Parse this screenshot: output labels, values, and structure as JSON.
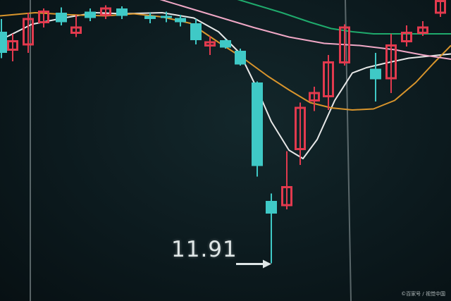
{
  "chart_data": {
    "type": "candlestick",
    "title": "",
    "low_annotation": "11.91",
    "annotation_arrow": "→",
    "watermark": "©百家号 / 视觉中国",
    "ylim": [
      11.5,
      14.5
    ],
    "colors": {
      "up": "#e23a4e",
      "down": "#3fc9c6",
      "ma_white": "#e8e8e8",
      "ma_orange": "#d9952c",
      "ma_green": "#1faa6c",
      "ma_pink": "#f0a8c6",
      "vline": "#9aa6a8"
    },
    "candles": [
      {
        "x": 2,
        "open": 14.1,
        "close": 13.9,
        "high": 14.22,
        "low": 13.85
      },
      {
        "x": 18,
        "open": 13.92,
        "close": 14.02,
        "high": 14.08,
        "low": 13.82
      },
      {
        "x": 40,
        "open": 13.97,
        "close": 14.23,
        "high": 14.28,
        "low": 13.9
      },
      {
        "x": 62,
        "open": 14.18,
        "close": 14.3,
        "high": 14.32,
        "low": 14.14
      },
      {
        "x": 87,
        "open": 14.28,
        "close": 14.19,
        "high": 14.33,
        "low": 14.16
      },
      {
        "x": 108,
        "open": 14.08,
        "close": 14.15,
        "high": 14.26,
        "low": 14.05
      },
      {
        "x": 128,
        "open": 14.29,
        "close": 14.23,
        "high": 14.32,
        "low": 14.2
      },
      {
        "x": 150,
        "open": 14.25,
        "close": 14.33,
        "high": 14.35,
        "low": 14.22
      },
      {
        "x": 173,
        "open": 14.32,
        "close": 14.25,
        "high": 14.34,
        "low": 14.22
      },
      {
        "x": 213,
        "open": 14.25,
        "close": 14.22,
        "high": 14.28,
        "low": 14.18
      },
      {
        "x": 236,
        "open": 14.25,
        "close": 14.24,
        "high": 14.29,
        "low": 14.19
      },
      {
        "x": 256,
        "open": 14.23,
        "close": 14.19,
        "high": 14.26,
        "low": 14.15
      },
      {
        "x": 278,
        "open": 14.18,
        "close": 14.02,
        "high": 14.22,
        "low": 13.98
      },
      {
        "x": 298,
        "open": 13.96,
        "close": 14.01,
        "high": 14.06,
        "low": 13.88
      },
      {
        "x": 320,
        "open": 14.02,
        "close": 13.95,
        "high": 14.03,
        "low": 13.94
      },
      {
        "x": 341,
        "open": 13.92,
        "close": 13.79,
        "high": 13.94,
        "low": 13.78
      },
      {
        "x": 365,
        "open": 13.62,
        "close": 12.83,
        "high": 13.63,
        "low": 12.73
      },
      {
        "x": 385,
        "open": 12.5,
        "close": 12.38,
        "high": 12.57,
        "low": 11.91
      },
      {
        "x": 407,
        "open": 12.45,
        "close": 12.64,
        "high": 12.97,
        "low": 12.42
      },
      {
        "x": 426,
        "open": 12.98,
        "close": 13.39,
        "high": 13.43,
        "low": 12.84
      },
      {
        "x": 446,
        "open": 13.44,
        "close": 13.53,
        "high": 13.58,
        "low": 13.35
      },
      {
        "x": 466,
        "open": 13.48,
        "close": 13.82,
        "high": 13.88,
        "low": 13.36
      },
      {
        "x": 489,
        "open": 13.8,
        "close": 14.15,
        "high": 14.17,
        "low": 13.78
      },
      {
        "x": 533,
        "open": 13.75,
        "close": 13.65,
        "high": 13.9,
        "low": 13.44
      },
      {
        "x": 555,
        "open": 13.65,
        "close": 13.98,
        "high": 14.08,
        "low": 13.52
      },
      {
        "x": 577,
        "open": 14.0,
        "close": 14.1,
        "high": 14.16,
        "low": 13.96
      },
      {
        "x": 600,
        "open": 14.08,
        "close": 14.15,
        "high": 14.2,
        "low": 14.06
      },
      {
        "x": 625,
        "open": 14.27,
        "close": 14.4,
        "high": 14.43,
        "low": 14.24
      }
    ],
    "ma_lines": [
      {
        "name": "ma-white",
        "color_key": "ma_white",
        "points": [
          [
            0,
            14.02
          ],
          [
            45,
            14.17
          ],
          [
            90,
            14.23
          ],
          [
            135,
            14.28
          ],
          [
            175,
            14.27
          ],
          [
            230,
            14.28
          ],
          [
            275,
            14.23
          ],
          [
            310,
            14.1
          ],
          [
            340,
            13.9
          ],
          [
            362,
            13.6
          ],
          [
            385,
            13.25
          ],
          [
            410,
            12.98
          ],
          [
            430,
            12.9
          ],
          [
            450,
            13.08
          ],
          [
            475,
            13.45
          ],
          [
            500,
            13.71
          ],
          [
            520,
            13.76
          ],
          [
            545,
            13.8
          ],
          [
            580,
            13.85
          ],
          [
            640,
            13.89
          ]
        ]
      },
      {
        "name": "ma-orange",
        "color_key": "ma_orange",
        "points": [
          [
            0,
            14.25
          ],
          [
            50,
            14.28
          ],
          [
            100,
            14.26
          ],
          [
            150,
            14.25
          ],
          [
            190,
            14.27
          ],
          [
            230,
            14.24
          ],
          [
            270,
            14.18
          ],
          [
            310,
            14.0
          ],
          [
            345,
            13.85
          ],
          [
            380,
            13.68
          ],
          [
            410,
            13.55
          ],
          [
            440,
            13.43
          ],
          [
            470,
            13.38
          ],
          [
            500,
            13.36
          ],
          [
            530,
            13.37
          ],
          [
            560,
            13.45
          ],
          [
            590,
            13.62
          ],
          [
            615,
            13.8
          ],
          [
            640,
            13.97
          ]
        ]
      },
      {
        "name": "ma-green",
        "color_key": "ma_green",
        "points": [
          [
            320,
            14.44
          ],
          [
            360,
            14.36
          ],
          [
            400,
            14.28
          ],
          [
            440,
            14.19
          ],
          [
            470,
            14.13
          ],
          [
            500,
            14.1
          ],
          [
            530,
            14.08
          ],
          [
            570,
            14.08
          ],
          [
            610,
            14.08
          ],
          [
            640,
            14.08
          ]
        ]
      },
      {
        "name": "ma-pink",
        "color_key": "ma_pink",
        "points": [
          [
            200,
            14.46
          ],
          [
            260,
            14.34
          ],
          [
            310,
            14.24
          ],
          [
            360,
            14.14
          ],
          [
            410,
            14.05
          ],
          [
            460,
            13.99
          ],
          [
            510,
            13.97
          ],
          [
            560,
            13.93
          ],
          [
            600,
            13.88
          ],
          [
            640,
            13.84
          ]
        ]
      }
    ],
    "vlines": [
      43,
      490
    ]
  }
}
